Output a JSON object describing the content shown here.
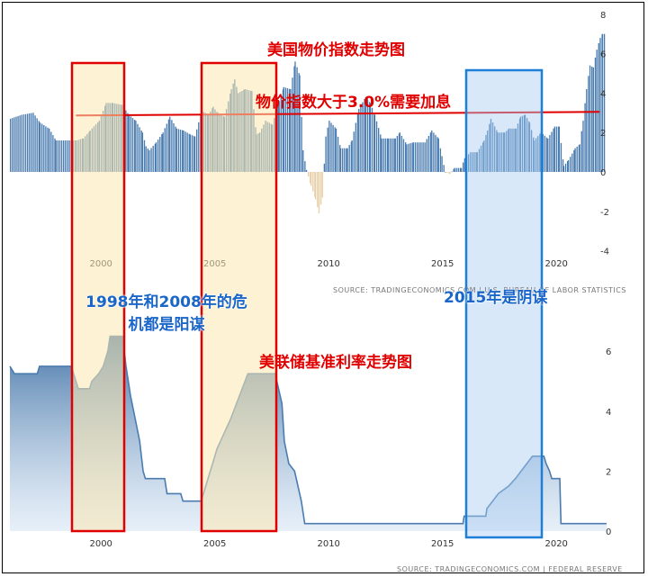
{
  "annotations": {
    "top_title": "美国物价指数走势图",
    "threshold_note": "物价指数大于3.0%需要加息",
    "crisis_note_line1": "1998年和2008年的危",
    "crisis_note_line2": "机都是阳谋",
    "note_2015": "2015年是阴谋",
    "bottom_title": "美联储基准利率走势图"
  },
  "colors": {
    "bar_positive": "#4a7cb0",
    "bar_negative": "#e8cfa8",
    "threshold_line": "#e00000",
    "highlight_red": "#e00000",
    "highlight_blue": "#1e7fd8",
    "rate_line": "#4a7cb0"
  },
  "chart_data": [
    {
      "type": "bar",
      "title": "",
      "xlabel": "",
      "ylabel": "",
      "x_ticks": [
        "2000",
        "2005",
        "2010",
        "2015",
        "2020"
      ],
      "y_ticks": [
        "8",
        "6",
        "4",
        "2",
        "0",
        "-2",
        "-4"
      ],
      "ylim": [
        -4,
        8
      ],
      "xlim": [
        1996,
        2022.2
      ],
      "threshold": 3.0,
      "source": "SOURCE:  TRADINGECONOMICS.COM  |  U.S. BUREAU OF LABOR STATISTICS",
      "series": [
        {
          "points": [
            [
              1996.0,
              2.7
            ],
            [
              1996.5,
              2.9
            ],
            [
              1997.0,
              3.0
            ],
            [
              1997.3,
              2.5
            ],
            [
              1997.7,
              2.2
            ],
            [
              1998.0,
              1.6
            ],
            [
              1998.5,
              1.6
            ],
            [
              1998.9,
              1.6
            ],
            [
              1999.2,
              1.7
            ],
            [
              1999.5,
              2.1
            ],
            [
              1999.9,
              2.6
            ],
            [
              2000.2,
              3.5
            ],
            [
              2000.5,
              3.5
            ],
            [
              2000.9,
              3.4
            ],
            [
              2001.2,
              2.9
            ],
            [
              2001.5,
              2.6
            ],
            [
              2001.8,
              2.0
            ],
            [
              2001.95,
              1.3
            ],
            [
              2002.1,
              1.1
            ],
            [
              2002.4,
              1.5
            ],
            [
              2002.7,
              2.0
            ],
            [
              2003.0,
              2.8
            ],
            [
              2003.3,
              2.2
            ],
            [
              2003.6,
              2.1
            ],
            [
              2003.9,
              1.9
            ],
            [
              2004.1,
              1.8
            ],
            [
              2004.4,
              3.1
            ],
            [
              2004.7,
              2.9
            ],
            [
              2004.9,
              3.3
            ],
            [
              2005.1,
              3.0
            ],
            [
              2005.4,
              2.8
            ],
            [
              2005.7,
              4.2
            ],
            [
              2005.85,
              4.7
            ],
            [
              2006.0,
              4.0
            ],
            [
              2006.3,
              4.2
            ],
            [
              2006.6,
              4.1
            ],
            [
              2006.8,
              1.9
            ],
            [
              2006.95,
              2.0
            ],
            [
              2007.2,
              2.6
            ],
            [
              2007.5,
              2.4
            ],
            [
              2007.8,
              3.6
            ],
            [
              2008.0,
              4.3
            ],
            [
              2008.3,
              4.2
            ],
            [
              2008.5,
              5.6
            ],
            [
              2008.7,
              4.9
            ],
            [
              2008.85,
              1.1
            ],
            [
              2009.0,
              0.1
            ],
            [
              2009.2,
              -0.7
            ],
            [
              2009.4,
              -1.4
            ],
            [
              2009.55,
              -2.1
            ],
            [
              2009.7,
              -1.3
            ],
            [
              2009.85,
              1.8
            ],
            [
              2010.0,
              2.6
            ],
            [
              2010.3,
              2.2
            ],
            [
              2010.5,
              1.2
            ],
            [
              2010.8,
              1.2
            ],
            [
              2011.0,
              1.6
            ],
            [
              2011.3,
              3.2
            ],
            [
              2011.6,
              3.8
            ],
            [
              2011.8,
              3.5
            ],
            [
              2012.0,
              2.9
            ],
            [
              2012.3,
              1.7
            ],
            [
              2012.6,
              1.7
            ],
            [
              2012.9,
              1.7
            ],
            [
              2013.1,
              2.0
            ],
            [
              2013.4,
              1.4
            ],
            [
              2013.7,
              1.5
            ],
            [
              2013.95,
              1.5
            ],
            [
              2014.2,
              1.5
            ],
            [
              2014.5,
              2.1
            ],
            [
              2014.8,
              1.7
            ],
            [
              2014.95,
              0.8
            ],
            [
              2015.1,
              0.0
            ],
            [
              2015.3,
              -0.1
            ],
            [
              2015.5,
              0.2
            ],
            [
              2015.8,
              0.2
            ],
            [
              2015.95,
              0.7
            ],
            [
              2016.2,
              1.0
            ],
            [
              2016.5,
              1.0
            ],
            [
              2016.8,
              1.6
            ],
            [
              2016.95,
              2.1
            ],
            [
              2017.1,
              2.7
            ],
            [
              2017.4,
              2.0
            ],
            [
              2017.7,
              2.0
            ],
            [
              2017.9,
              2.2
            ],
            [
              2018.2,
              2.2
            ],
            [
              2018.4,
              2.8
            ],
            [
              2018.6,
              2.9
            ],
            [
              2018.8,
              2.5
            ],
            [
              2019.0,
              1.6
            ],
            [
              2019.3,
              2.0
            ],
            [
              2019.6,
              1.7
            ],
            [
              2019.9,
              2.3
            ],
            [
              2020.1,
              2.3
            ],
            [
              2020.3,
              0.3
            ],
            [
              2020.5,
              0.6
            ],
            [
              2020.8,
              1.2
            ],
            [
              2021.0,
              1.4
            ],
            [
              2021.15,
              2.6
            ],
            [
              2021.3,
              4.2
            ],
            [
              2021.45,
              5.4
            ],
            [
              2021.6,
              5.3
            ],
            [
              2021.75,
              6.2
            ],
            [
              2021.9,
              6.8
            ],
            [
              2022.0,
              7.0
            ]
          ]
        }
      ]
    },
    {
      "type": "area",
      "title": "",
      "xlabel": "",
      "ylabel": "",
      "x_ticks": [
        "2000",
        "2005",
        "2010",
        "2015",
        "2020"
      ],
      "y_ticks": [
        "6",
        "4",
        "2",
        "0"
      ],
      "ylim": [
        0,
        6.5
      ],
      "xlim": [
        1996,
        2022.2
      ],
      "source": "SOURCE:  TRADINGECONOMICS.COM  |  FEDERAL  RESERVE",
      "series": [
        {
          "points": [
            [
              1996.0,
              5.5
            ],
            [
              1996.2,
              5.25
            ],
            [
              1997.2,
              5.25
            ],
            [
              1997.3,
              5.5
            ],
            [
              1998.7,
              5.5
            ],
            [
              1998.8,
              5.25
            ],
            [
              1998.9,
              5.0
            ],
            [
              1999.0,
              4.75
            ],
            [
              1999.5,
              4.75
            ],
            [
              1999.6,
              5.0
            ],
            [
              1999.9,
              5.25
            ],
            [
              2000.1,
              5.5
            ],
            [
              2000.3,
              6.0
            ],
            [
              2000.4,
              6.5
            ],
            [
              2000.95,
              6.5
            ],
            [
              2001.1,
              5.5
            ],
            [
              2001.3,
              4.5
            ],
            [
              2001.5,
              3.75
            ],
            [
              2001.7,
              3.0
            ],
            [
              2001.85,
              2.0
            ],
            [
              2001.95,
              1.75
            ],
            [
              2002.8,
              1.75
            ],
            [
              2002.9,
              1.25
            ],
            [
              2003.5,
              1.25
            ],
            [
              2003.6,
              1.0
            ],
            [
              2004.4,
              1.0
            ],
            [
              2004.5,
              1.25
            ],
            [
              2004.7,
              1.75
            ],
            [
              2004.9,
              2.25
            ],
            [
              2005.1,
              2.75
            ],
            [
              2005.4,
              3.25
            ],
            [
              2005.7,
              3.75
            ],
            [
              2005.95,
              4.25
            ],
            [
              2006.2,
              4.75
            ],
            [
              2006.45,
              5.25
            ],
            [
              2007.65,
              5.25
            ],
            [
              2007.8,
              4.75
            ],
            [
              2007.95,
              4.25
            ],
            [
              2008.05,
              3.0
            ],
            [
              2008.25,
              2.25
            ],
            [
              2008.5,
              2.0
            ],
            [
              2008.8,
              1.0
            ],
            [
              2008.95,
              0.25
            ],
            [
              2015.9,
              0.25
            ],
            [
              2015.95,
              0.5
            ],
            [
              2016.9,
              0.5
            ],
            [
              2016.95,
              0.75
            ],
            [
              2017.2,
              1.0
            ],
            [
              2017.45,
              1.25
            ],
            [
              2017.9,
              1.5
            ],
            [
              2018.2,
              1.75
            ],
            [
              2018.45,
              2.0
            ],
            [
              2018.7,
              2.25
            ],
            [
              2018.95,
              2.5
            ],
            [
              2019.45,
              2.5
            ],
            [
              2019.55,
              2.25
            ],
            [
              2019.7,
              2.0
            ],
            [
              2019.8,
              1.75
            ],
            [
              2020.15,
              1.75
            ],
            [
              2020.2,
              0.25
            ],
            [
              2022.2,
              0.25
            ]
          ]
        }
      ]
    }
  ]
}
